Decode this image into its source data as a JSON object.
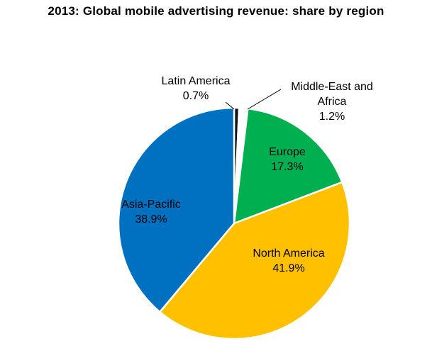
{
  "chart_data": {
    "type": "pie",
    "title": "2013: Global mobile advertising revenue: share by region",
    "slices": [
      {
        "name": "Latin America",
        "value": 0.7,
        "label": "0.7%",
        "color": "#111111"
      },
      {
        "name": "Middle-East and Africa",
        "name_lines": [
          "Middle-East and",
          "Africa"
        ],
        "value": 1.2,
        "label": "1.2%",
        "color": "#ffffff"
      },
      {
        "name": "Europe",
        "value": 17.3,
        "label": "17.3%",
        "color": "#00b050"
      },
      {
        "name": "North America",
        "value": 41.9,
        "label": "41.9%",
        "color": "#ffc000"
      },
      {
        "name": "Asia-Pacific",
        "value": 38.9,
        "label": "38.9%",
        "color": "#0070c0"
      }
    ],
    "start_angle_deg": 0,
    "direction": "clockwise"
  }
}
